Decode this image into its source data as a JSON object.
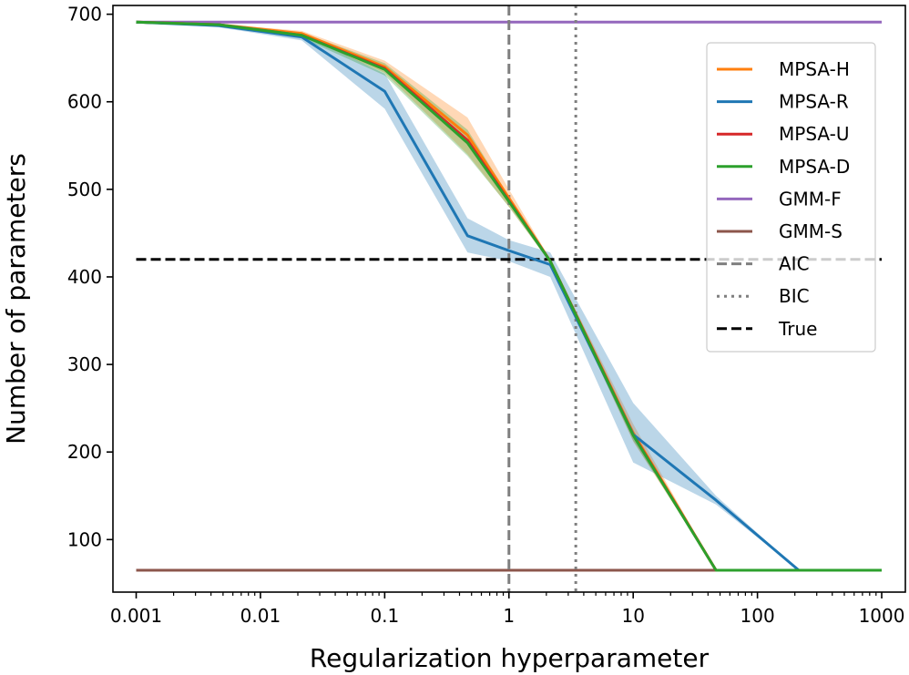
{
  "chart_data": {
    "type": "line",
    "xscale": "log",
    "xlabel": "Regularization hyperparameter",
    "ylabel": "Number of parameters",
    "xlim": [
      0.00065,
      1550
    ],
    "ylim": [
      40,
      710
    ],
    "x": [
      0.001,
      0.00464,
      0.0215,
      0.1,
      0.464,
      1.0,
      2.15,
      10.0,
      46.4,
      215,
      1000
    ],
    "xticks": [
      0.001,
      0.01,
      0.1,
      1,
      10,
      100,
      1000
    ],
    "xtick_labels": [
      "0.001",
      "0.01",
      "0.1",
      "1",
      "10",
      "100",
      "1000"
    ],
    "yticks": [
      100,
      200,
      300,
      400,
      500,
      600,
      700
    ],
    "ytick_labels": [
      "100",
      "200",
      "300",
      "400",
      "500",
      "600",
      "700"
    ],
    "series": [
      {
        "name": "MPSA-H",
        "color": "#ff7f0e",
        "values": [
          691,
          688,
          678,
          640,
          562,
          490,
          418,
          222,
          65,
          65,
          65
        ],
        "band_low": [
          691,
          688,
          675,
          633,
          540,
          480,
          416,
          212,
          65,
          65,
          65
        ],
        "band_high": [
          691,
          689,
          681,
          647,
          582,
          500,
          420,
          232,
          65,
          65,
          65
        ]
      },
      {
        "name": "MPSA-R",
        "color": "#1f77b4",
        "values": [
          691,
          687,
          674,
          612,
          447,
          430,
          414,
          220,
          145,
          65,
          65
        ],
        "band_low": [
          691,
          685,
          670,
          592,
          428,
          418,
          400,
          188,
          140,
          65,
          65
        ],
        "band_high": [
          691,
          689,
          678,
          632,
          467,
          442,
          428,
          256,
          150,
          65,
          65
        ]
      },
      {
        "name": "MPSA-U",
        "color": "#d62728",
        "values": [
          691,
          688,
          676,
          638,
          556,
          487,
          418,
          220,
          65,
          65,
          65
        ]
      },
      {
        "name": "MPSA-D",
        "color": "#2ca02c",
        "values": [
          691,
          688,
          676,
          637,
          553,
          486,
          418,
          219,
          65,
          65,
          65
        ],
        "band_low": [
          691,
          687,
          673,
          630,
          538,
          480,
          416,
          213,
          65,
          65,
          65
        ],
        "band_high": [
          691,
          689,
          679,
          644,
          568,
          492,
          420,
          225,
          65,
          65,
          65
        ]
      },
      {
        "name": "GMM-F",
        "color": "#9467bd",
        "constant": 691
      },
      {
        "name": "GMM-S",
        "color": "#8c564b",
        "constant": 65
      }
    ],
    "reference_lines": [
      {
        "name": "AIC",
        "orientation": "vertical",
        "value": 1.0,
        "style": "dashed",
        "color": "#7f7f7f"
      },
      {
        "name": "BIC",
        "orientation": "vertical",
        "value": 3.45,
        "style": "dotted",
        "color": "#7f7f7f"
      },
      {
        "name": "True",
        "orientation": "horizontal",
        "value": 420,
        "style": "dashed",
        "color": "#000000"
      }
    ],
    "legend": {
      "placement": "upper-right",
      "entries": [
        {
          "label": "MPSA-H",
          "color": "#ff7f0e",
          "style": "solid"
        },
        {
          "label": "MPSA-R",
          "color": "#1f77b4",
          "style": "solid"
        },
        {
          "label": "MPSA-U",
          "color": "#d62728",
          "style": "solid"
        },
        {
          "label": "MPSA-D",
          "color": "#2ca02c",
          "style": "solid"
        },
        {
          "label": "GMM-F",
          "color": "#9467bd",
          "style": "solid"
        },
        {
          "label": "GMM-S",
          "color": "#8c564b",
          "style": "solid"
        },
        {
          "label": "AIC",
          "color": "#7f7f7f",
          "style": "dashed"
        },
        {
          "label": "BIC",
          "color": "#7f7f7f",
          "style": "dotted"
        },
        {
          "label": "True",
          "color": "#000000",
          "style": "dashed"
        }
      ]
    }
  }
}
